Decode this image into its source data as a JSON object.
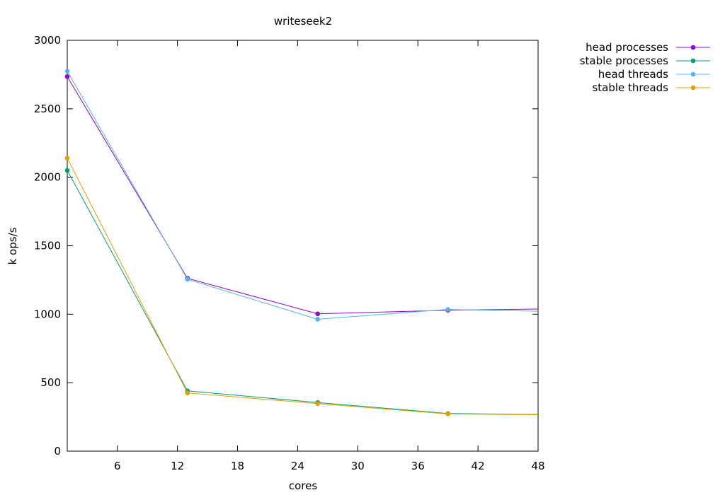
{
  "chart_data": {
    "type": "line",
    "title": "writeseek2",
    "xlabel": "cores",
    "ylabel": "k ops/s",
    "xlim": [
      1,
      48
    ],
    "ylim": [
      0,
      3000
    ],
    "xticks": [
      6,
      12,
      18,
      24,
      30,
      36,
      42,
      48
    ],
    "yticks": [
      0,
      500,
      1000,
      1500,
      2000,
      2500,
      3000
    ],
    "legend": "top-right-outside",
    "grid": false,
    "series": [
      {
        "name": "head processes",
        "color": "#9400d3",
        "points": [
          [
            1,
            2735
          ],
          [
            13,
            1262
          ],
          [
            26,
            1003
          ],
          [
            39,
            1029
          ],
          [
            48,
            1038
          ]
        ]
      },
      {
        "name": "stable processes",
        "color": "#009e73",
        "points": [
          [
            1,
            2050
          ],
          [
            13,
            440
          ],
          [
            26,
            355
          ],
          [
            39,
            275
          ],
          [
            48,
            268
          ]
        ]
      },
      {
        "name": "head threads",
        "color": "#56b4e9",
        "points": [
          [
            1,
            2775
          ],
          [
            13,
            1255
          ],
          [
            26,
            963
          ],
          [
            39,
            1035
          ],
          [
            48,
            1022
          ]
        ]
      },
      {
        "name": "stable threads",
        "color": "#e69f00",
        "points": [
          [
            1,
            2140
          ],
          [
            13,
            425
          ],
          [
            26,
            347
          ],
          [
            39,
            272
          ],
          [
            48,
            266
          ]
        ]
      }
    ]
  }
}
